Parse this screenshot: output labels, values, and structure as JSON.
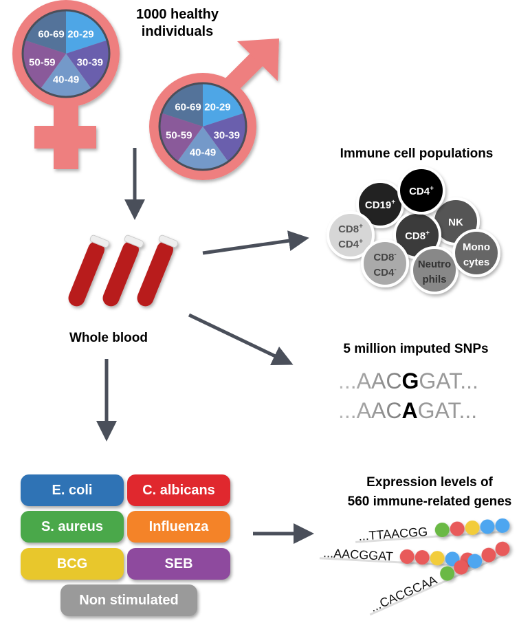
{
  "title": {
    "line1": "1000 healthy",
    "line2": "individuals"
  },
  "age_groups": [
    "20-29",
    "30-39",
    "40-49",
    "50-59",
    "60-69"
  ],
  "age_colors": [
    "#4ea6e6",
    "#6a5fad",
    "#7499c9",
    "#8a5a9a",
    "#54739a"
  ],
  "symbol_color": "#ee7f7f",
  "arrow_color": "#4a4f5a",
  "whole_blood": "Whole blood",
  "immune": {
    "title": "Immune cell populations",
    "cells": [
      {
        "l1": "CD19",
        "s1": "+",
        "color": "#222222",
        "text": "#ffffff"
      },
      {
        "l1": "CD4",
        "s1": "+",
        "color": "#000000",
        "text": "#ffffff"
      },
      {
        "l1": "NK",
        "color": "#555555",
        "text": "#ffffff"
      },
      {
        "l1": "CD8",
        "s1": "+",
        "color": "#3a3a3a",
        "text": "#ffffff"
      },
      {
        "l1": "CD8",
        "s1": "+",
        "l2": "CD4",
        "s2": "+",
        "color": "#d6d6d6",
        "text": "#555555"
      },
      {
        "l1": "CD8",
        "s1": "-",
        "l2": "CD4",
        "s2": "-",
        "color": "#aaaaaa",
        "text": "#444444"
      },
      {
        "l1": "Neutro",
        "l2": "phils",
        "color": "#888888",
        "text": "#333333"
      },
      {
        "l1": "Mono",
        "l2": "cytes",
        "color": "#666666",
        "text": "#ffffff"
      }
    ]
  },
  "snps": {
    "title": "5 million imputed SNPs",
    "seq1": {
      "pre": "...AAC",
      "var": "G",
      "post": "GAT..."
    },
    "seq2": {
      "pre": "...AAC",
      "var": "A",
      "post": "GAT..."
    }
  },
  "stimuli": [
    {
      "label": "E. coli",
      "color": "#2f73b5"
    },
    {
      "label": "C. albicans",
      "color": "#e0282e"
    },
    {
      "label": "S. aureus",
      "color": "#4aa84a"
    },
    {
      "label": "Influenza",
      "color": "#f48328"
    },
    {
      "label": "BCG",
      "color": "#e8c72c"
    },
    {
      "label": "SEB",
      "color": "#8e4a9e"
    },
    {
      "label": "Non stimulated",
      "color": "#9a9a9a"
    }
  ],
  "expression": {
    "title1": "Expression levels of",
    "title2": "560 immune-related genes",
    "rows": [
      {
        "seq": "...TTAACGG",
        "dots": [
          "#6ab945",
          "#e85a5a",
          "#f2cc3a",
          "#4ea6f0",
          "#4ea6f0"
        ]
      },
      {
        "seq": "...AACGGAT",
        "dots": [
          "#e85a5a",
          "#e85a5a",
          "#f2cc3a",
          "#4ea6f0",
          "#e85a5a"
        ]
      },
      {
        "seq": "...CACGCAA",
        "dots": [
          "#6ab945",
          "#e85a5a",
          "#4ea6f0",
          "#e85a5a",
          "#e85a5a"
        ]
      }
    ]
  }
}
